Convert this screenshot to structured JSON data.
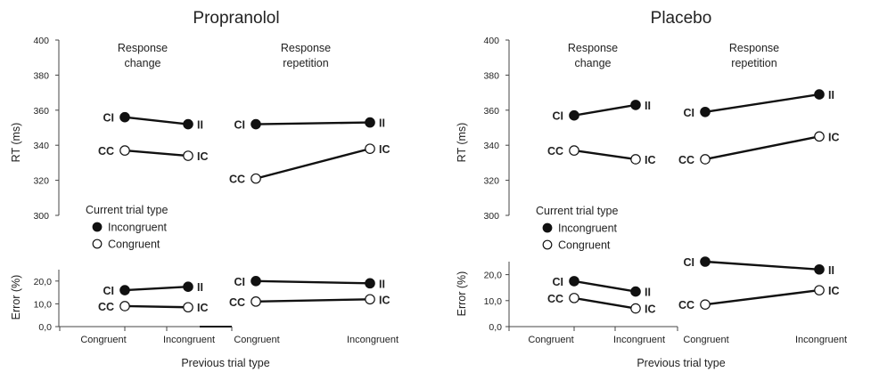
{
  "chart_data": [
    {
      "type": "line",
      "title": "Propranolol",
      "xlabel": "Previous trial type",
      "x_categories": [
        "Congruent",
        "Incongruent"
      ],
      "legend": {
        "title": "Current trial type",
        "entries": [
          {
            "label": "Incongruent",
            "marker": "filled"
          },
          {
            "label": "Congruent",
            "marker": "open"
          }
        ]
      },
      "rt": {
        "ylabel": "RT (ms)",
        "ylim": [
          300,
          400
        ],
        "yticks": [
          "300",
          "320",
          "340",
          "360",
          "380",
          "400"
        ],
        "groups": [
          {
            "label": [
              "Response",
              "change"
            ],
            "series": [
              {
                "points": [
                  {
                    "label": "CI",
                    "value": 356
                  },
                  {
                    "label": "II",
                    "value": 352
                  }
                ],
                "marker": "filled"
              },
              {
                "points": [
                  {
                    "label": "CC",
                    "value": 337
                  },
                  {
                    "label": "IC",
                    "value": 334
                  }
                ],
                "marker": "open"
              }
            ]
          },
          {
            "label": [
              "Response",
              "repetition"
            ],
            "series": [
              {
                "points": [
                  {
                    "label": "CI",
                    "value": 352
                  },
                  {
                    "label": "II",
                    "value": 353
                  }
                ],
                "marker": "filled"
              },
              {
                "points": [
                  {
                    "label": "CC",
                    "value": 321
                  },
                  {
                    "label": "IC",
                    "value": 338
                  }
                ],
                "marker": "open"
              }
            ]
          }
        ]
      },
      "error": {
        "ylabel": "Error (%)",
        "ylim": [
          0,
          25
        ],
        "yticks": [
          "0,0",
          "10,0",
          "20,0"
        ],
        "groups": [
          {
            "series": [
              {
                "points": [
                  {
                    "label": "CI",
                    "value": 16
                  },
                  {
                    "label": "II",
                    "value": 17.5
                  }
                ],
                "marker": "filled"
              },
              {
                "points": [
                  {
                    "label": "CC",
                    "value": 9
                  },
                  {
                    "label": "IC",
                    "value": 8.5
                  }
                ],
                "marker": "open"
              }
            ]
          },
          {
            "series": [
              {
                "points": [
                  {
                    "label": "CI",
                    "value": 20
                  },
                  {
                    "label": "II",
                    "value": 19
                  }
                ],
                "marker": "filled"
              },
              {
                "points": [
                  {
                    "label": "CC",
                    "value": 11
                  },
                  {
                    "label": "IC",
                    "value": 12
                  }
                ],
                "marker": "open"
              }
            ]
          }
        ]
      }
    },
    {
      "type": "line",
      "title": "Placebo",
      "xlabel": "Previous trial type",
      "x_categories": [
        "Congruent",
        "Incongruent"
      ],
      "legend": {
        "title": "Current trial type",
        "entries": [
          {
            "label": "Incongruent",
            "marker": "filled"
          },
          {
            "label": "Congruent",
            "marker": "open"
          }
        ]
      },
      "rt": {
        "ylabel": "RT (ms)",
        "ylim": [
          300,
          400
        ],
        "yticks": [
          "300",
          "320",
          "340",
          "360",
          "380",
          "400"
        ],
        "groups": [
          {
            "label": [
              "Response",
              "change"
            ],
            "series": [
              {
                "points": [
                  {
                    "label": "CI",
                    "value": 357
                  },
                  {
                    "label": "II",
                    "value": 363
                  }
                ],
                "marker": "filled"
              },
              {
                "points": [
                  {
                    "label": "CC",
                    "value": 337
                  },
                  {
                    "label": "IC",
                    "value": 332
                  }
                ],
                "marker": "open"
              }
            ]
          },
          {
            "label": [
              "Response",
              "repetition"
            ],
            "series": [
              {
                "points": [
                  {
                    "label": "CI",
                    "value": 359
                  },
                  {
                    "label": "II",
                    "value": 369
                  }
                ],
                "marker": "filled"
              },
              {
                "points": [
                  {
                    "label": "CC",
                    "value": 332
                  },
                  {
                    "label": "IC",
                    "value": 345
                  }
                ],
                "marker": "open"
              }
            ]
          }
        ]
      },
      "error": {
        "ylabel": "Error (%)",
        "ylim": [
          0,
          25
        ],
        "yticks": [
          "0,0",
          "10,0",
          "20,0"
        ],
        "groups": [
          {
            "series": [
              {
                "points": [
                  {
                    "label": "CI",
                    "value": 17.5
                  },
                  {
                    "label": "II",
                    "value": 13.5
                  }
                ],
                "marker": "filled"
              },
              {
                "points": [
                  {
                    "label": "CC",
                    "value": 11
                  },
                  {
                    "label": "IC",
                    "value": 7
                  }
                ],
                "marker": "open"
              }
            ]
          },
          {
            "series": [
              {
                "points": [
                  {
                    "label": "CI",
                    "value": 25
                  },
                  {
                    "label": "II",
                    "value": 22
                  }
                ],
                "marker": "filled"
              },
              {
                "points": [
                  {
                    "label": "CC",
                    "value": 8.5
                  },
                  {
                    "label": "IC",
                    "value": 14
                  }
                ],
                "marker": "open"
              }
            ]
          }
        ]
      }
    }
  ]
}
